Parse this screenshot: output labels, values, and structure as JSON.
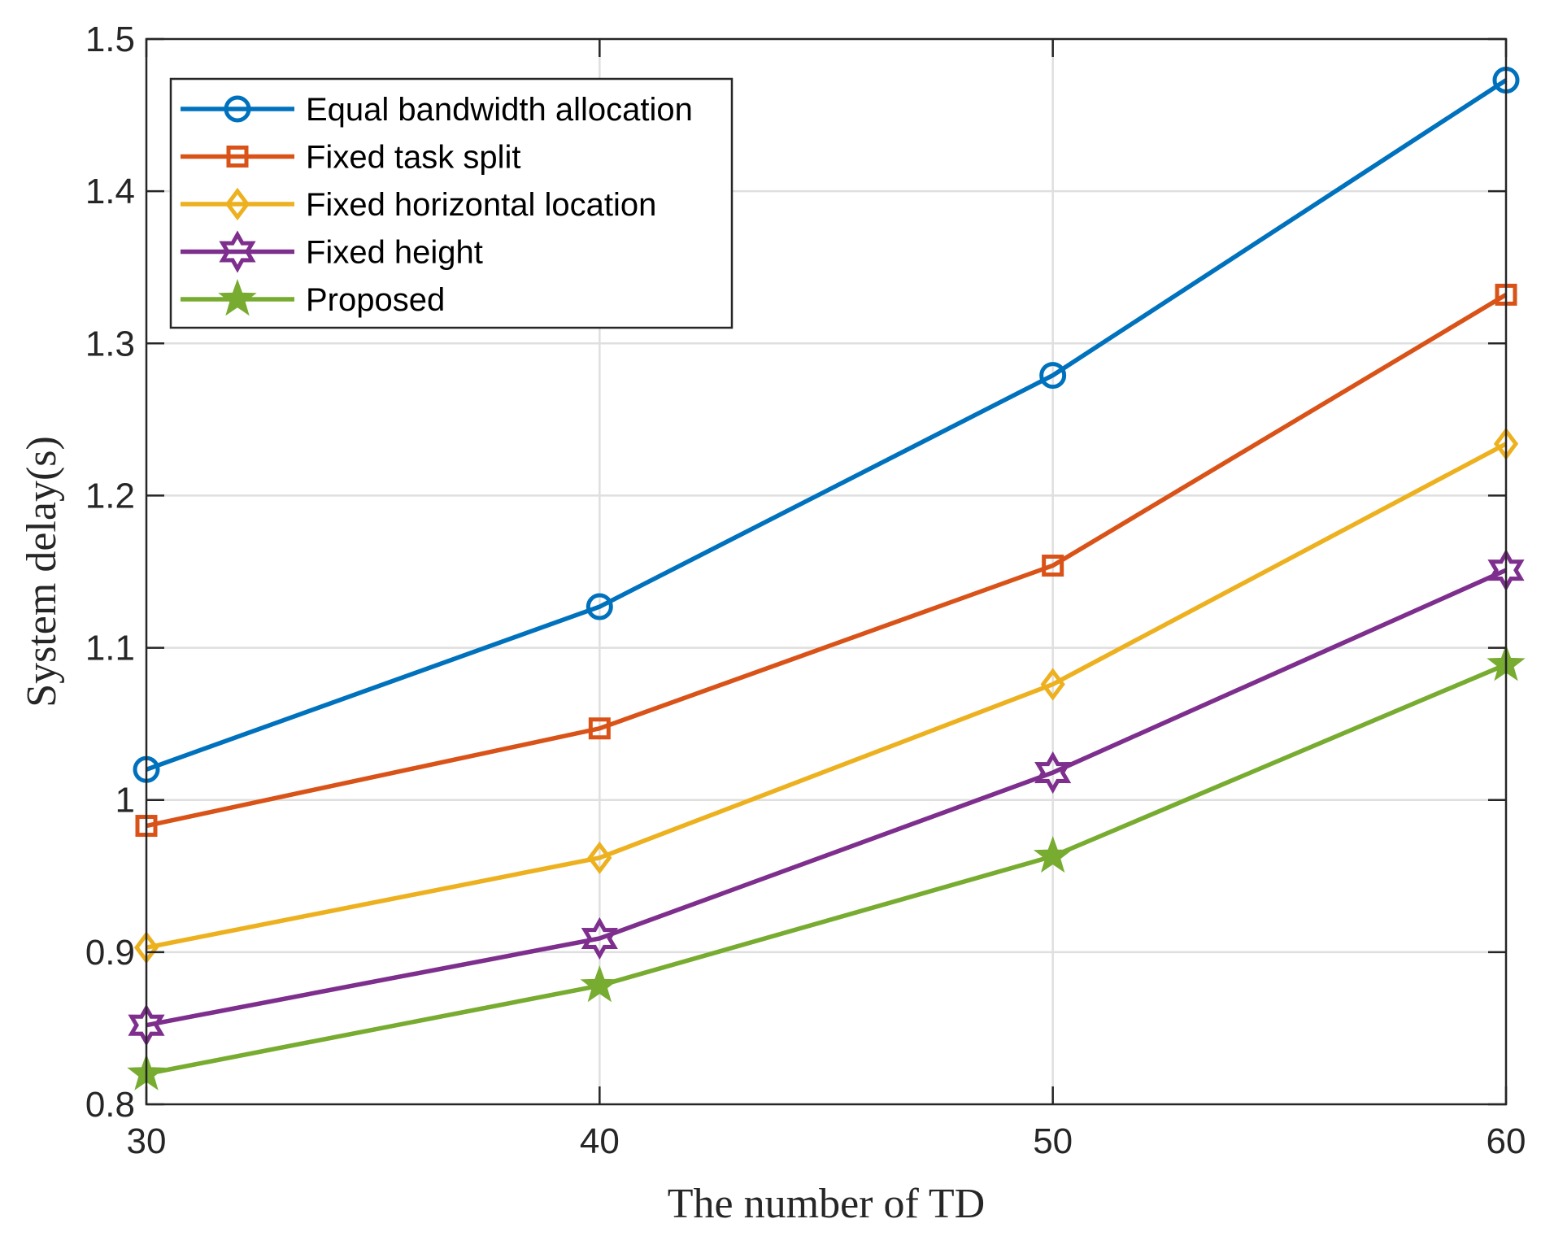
{
  "chart_data": {
    "type": "line",
    "title": "",
    "xlabel": "The number of TD",
    "ylabel": "System delay(s)",
    "x": [
      30,
      40,
      50,
      60
    ],
    "xlim": [
      30,
      60
    ],
    "ylim": [
      0.8,
      1.5
    ],
    "xticks": [
      "30",
      "40",
      "50",
      "60"
    ],
    "yticks": [
      "0.8",
      "0.9",
      "1",
      "1.1",
      "1.2",
      "1.3",
      "1.4",
      "1.5"
    ],
    "grid": true,
    "legend_position": "top-left",
    "series": [
      {
        "name": "Equal bandwidth allocation",
        "color": "#0072BD",
        "marker": "circle",
        "values": [
          1.02,
          1.127,
          1.279,
          1.473
        ]
      },
      {
        "name": "Fixed task split",
        "color": "#D95319",
        "marker": "square",
        "values": [
          0.983,
          1.047,
          1.154,
          1.332
        ]
      },
      {
        "name": "Fixed horizontal location",
        "color": "#EDB120",
        "marker": "diamond",
        "values": [
          0.903,
          0.962,
          1.076,
          1.234
        ]
      },
      {
        "name": "Fixed height",
        "color": "#7E2F8E",
        "marker": "hexagram",
        "values": [
          0.852,
          0.909,
          1.018,
          1.151
        ]
      },
      {
        "name": "Proposed",
        "color": "#77AC30",
        "marker": "pentagram",
        "values": [
          0.82,
          0.878,
          0.963,
          1.089
        ]
      }
    ]
  }
}
